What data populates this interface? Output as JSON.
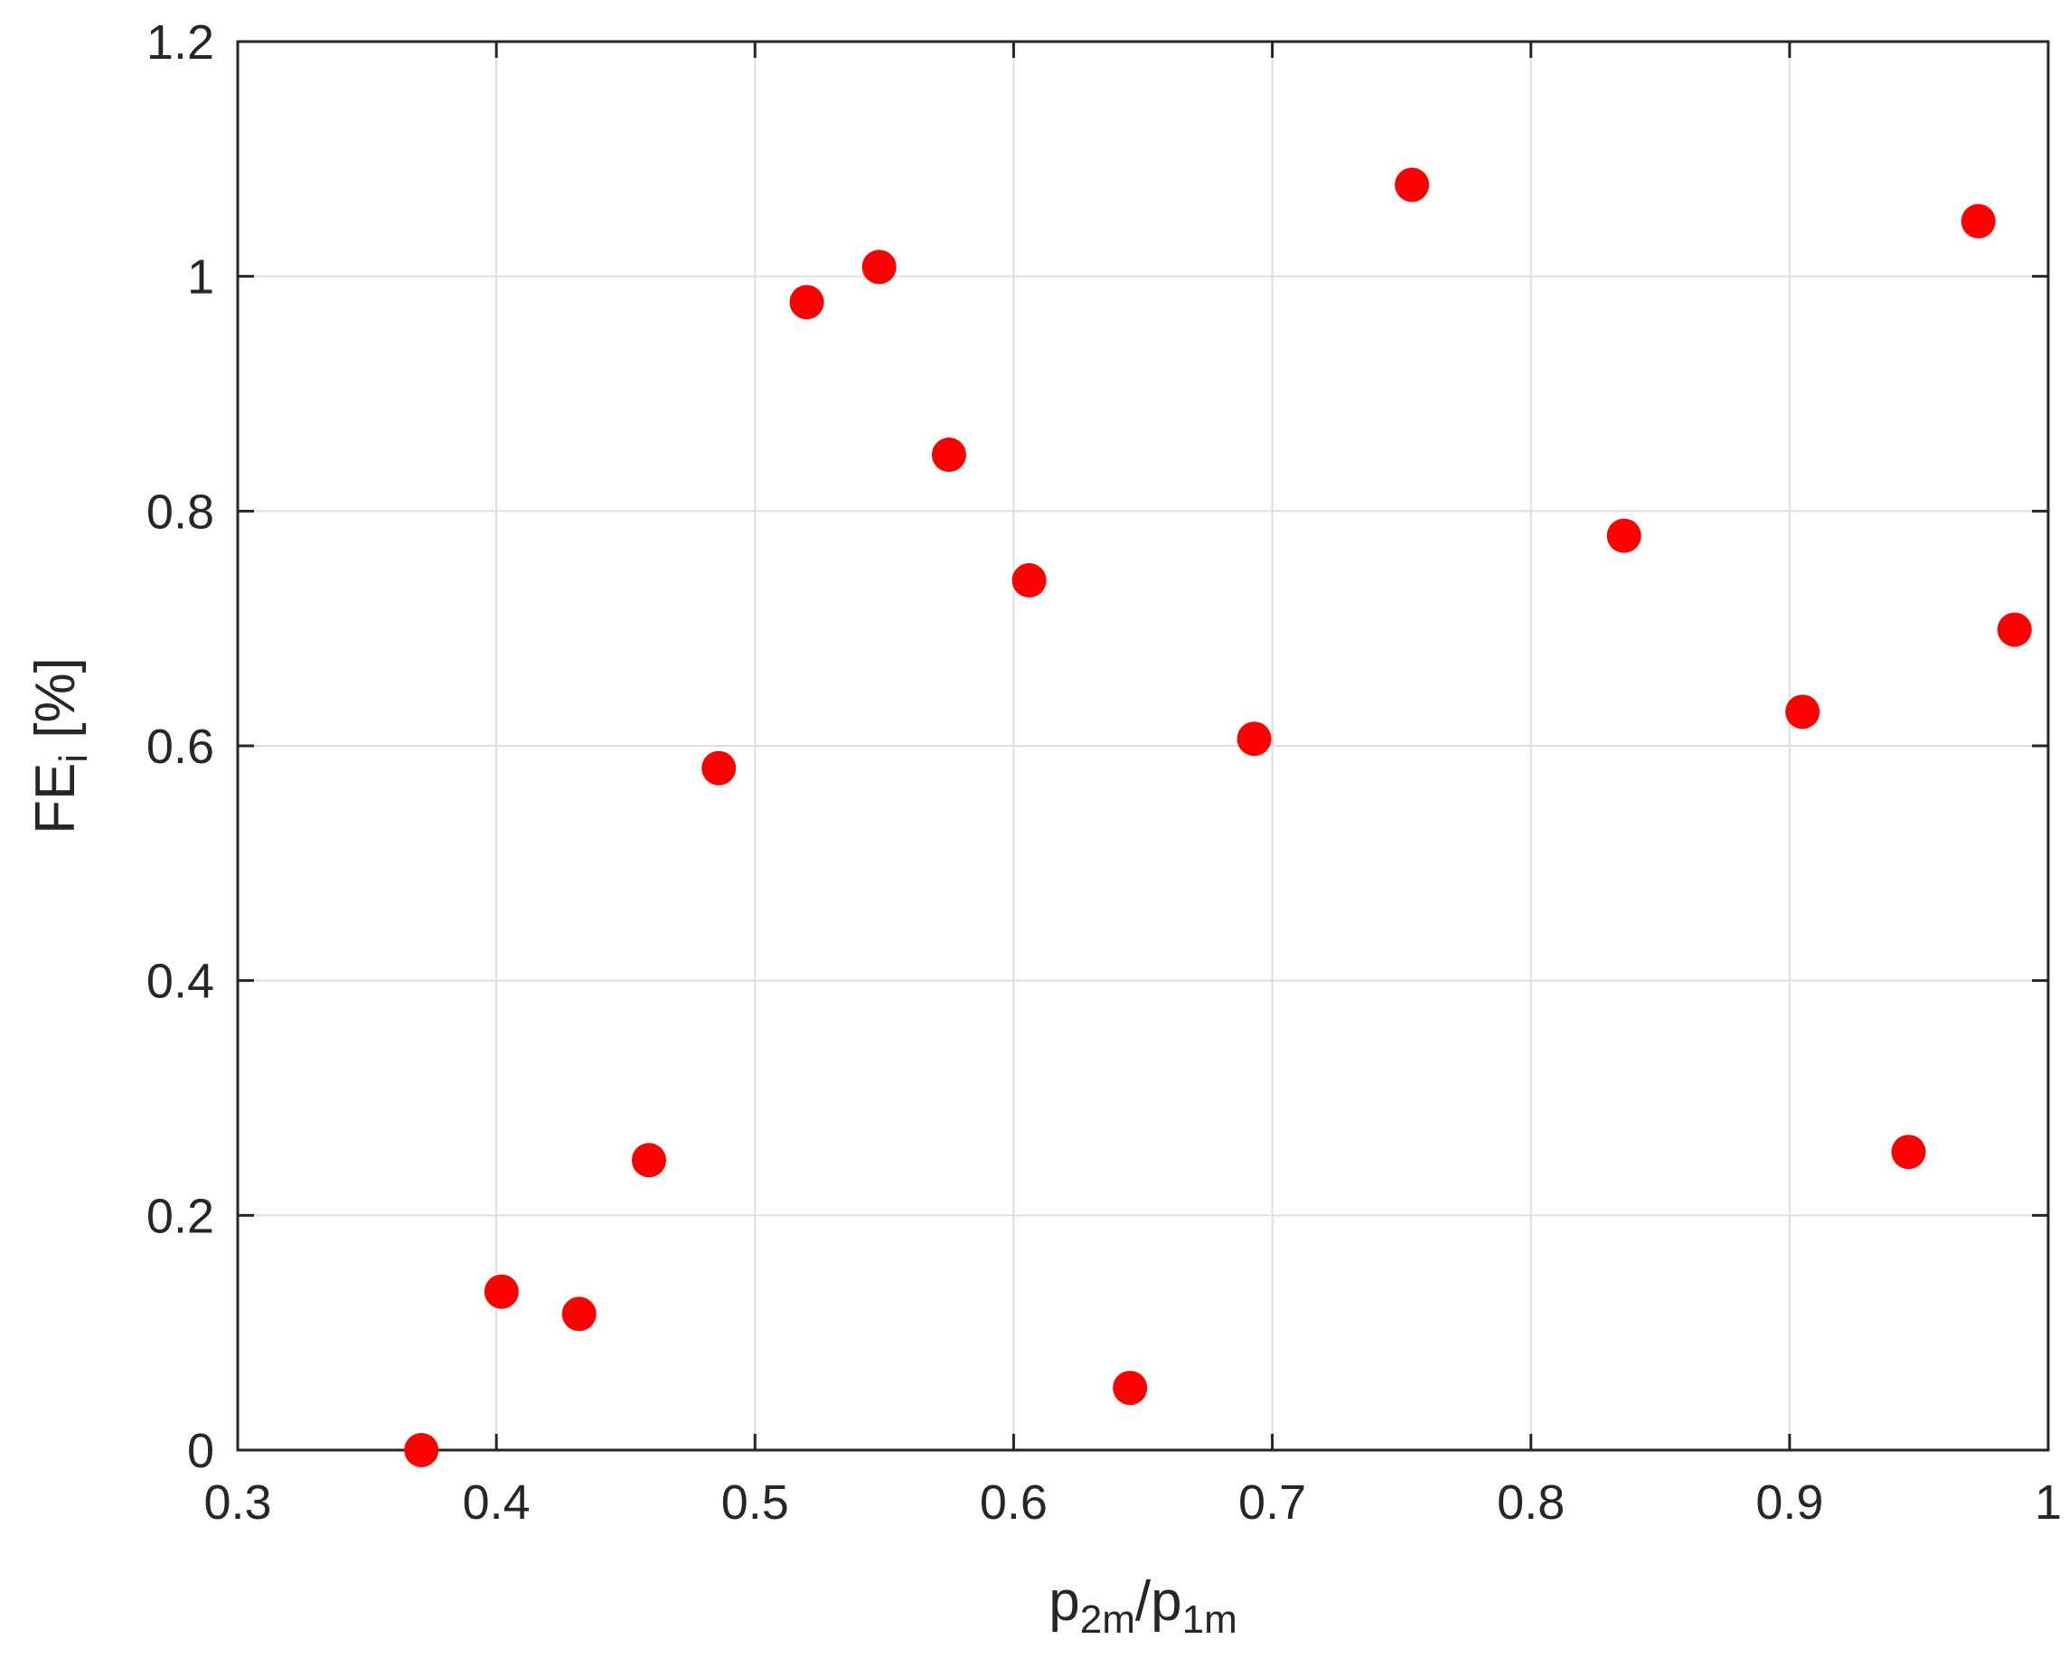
{
  "chart_data": {
    "type": "scatter",
    "title": "",
    "xlabel": {
      "base1": "p",
      "sub1": "2m",
      "sep": "/",
      "base2": "p",
      "sub2": "1m"
    },
    "ylabel": {
      "base": "FE",
      "sub": "i",
      "suffix": " [%]"
    },
    "xlim": [
      0.3,
      1.0
    ],
    "ylim": [
      0,
      1.2
    ],
    "xticks": [
      0.3,
      0.4,
      0.5,
      0.6,
      0.7,
      0.8,
      0.9,
      1.0
    ],
    "xtick_labels": [
      "0.3",
      "0.4",
      "0.5",
      "0.6",
      "0.7",
      "0.8",
      "0.9",
      "1"
    ],
    "yticks": [
      0,
      0.2,
      0.4,
      0.6,
      0.8,
      1.0,
      1.2
    ],
    "ytick_labels": [
      "0",
      "0.2",
      "0.4",
      "0.6",
      "0.8",
      "1",
      "1.2"
    ],
    "grid": true,
    "marker_color": "#ff0000",
    "series": [
      {
        "points": [
          {
            "x": 0.371,
            "y": 0.0
          },
          {
            "x": 0.402,
            "y": 0.135
          },
          {
            "x": 0.432,
            "y": 0.116
          },
          {
            "x": 0.459,
            "y": 0.247
          },
          {
            "x": 0.486,
            "y": 0.581
          },
          {
            "x": 0.52,
            "y": 0.978
          },
          {
            "x": 0.548,
            "y": 1.008
          },
          {
            "x": 0.575,
            "y": 0.848
          },
          {
            "x": 0.606,
            "y": 0.741
          },
          {
            "x": 0.645,
            "y": 0.053
          },
          {
            "x": 0.693,
            "y": 0.606
          },
          {
            "x": 0.754,
            "y": 1.078
          },
          {
            "x": 0.836,
            "y": 0.779
          },
          {
            "x": 0.905,
            "y": 0.629
          },
          {
            "x": 0.946,
            "y": 0.254
          },
          {
            "x": 0.973,
            "y": 1.047
          },
          {
            "x": 0.987,
            "y": 0.699
          }
        ]
      }
    ]
  }
}
